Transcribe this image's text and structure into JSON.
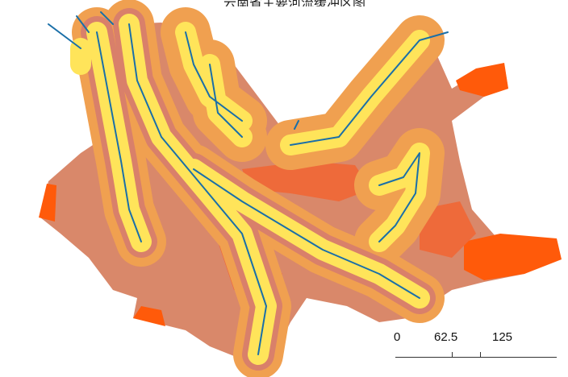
{
  "title": "云南省主要河流缓冲区图",
  "colors": {
    "base": "#d9886a",
    "band_orange": "#f0a050",
    "band_salmon": "#d9806a",
    "band_red_orange": "#ee6a3a",
    "band_deep": "#ff5a0a",
    "buffer_yellow": "#ffe45a",
    "river": "#1a6fa8"
  },
  "scale_bar": {
    "labels": [
      "0",
      "62.5",
      "125"
    ]
  }
}
